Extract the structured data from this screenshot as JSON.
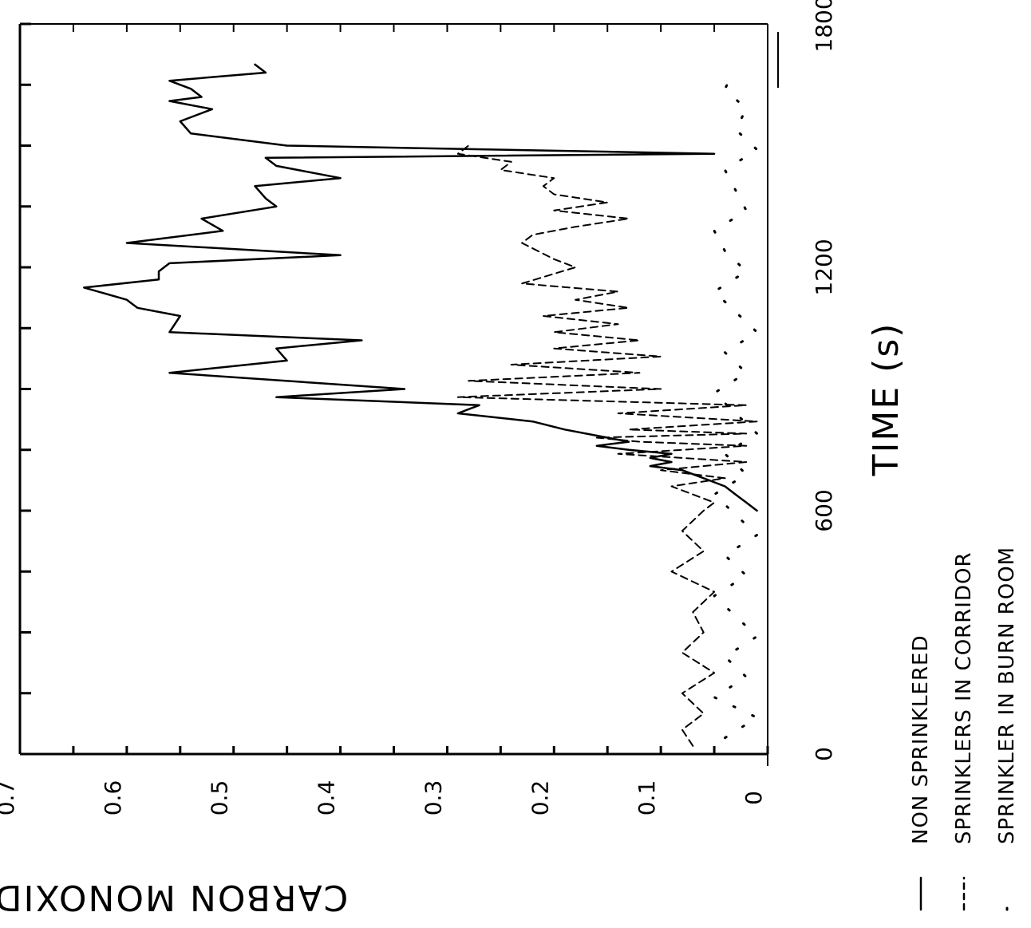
{
  "chart_data": {
    "type": "line",
    "title": "",
    "xlabel": "TIME (s)",
    "ylabel": "CARBON MONOXIDE (%)",
    "xlim": [
      0,
      1800
    ],
    "ylim": [
      0,
      0.7
    ],
    "x_ticks": [
      0,
      600,
      1200,
      1800
    ],
    "x_tick_labels": [
      "0",
      "600",
      "1200",
      "1800"
    ],
    "y_ticks": [
      0,
      0.1,
      0.2,
      0.3,
      0.4,
      0.5,
      0.6,
      0.7
    ],
    "y_tick_labels": [
      "0",
      "0.1",
      "0.2",
      "0.3",
      "0.4",
      "0.5",
      "0.6",
      "0.7"
    ],
    "grid": false,
    "legend_position": "bottom",
    "series": [
      {
        "name": "NON SPRINKLERED",
        "style": "solid",
        "color": "#000000",
        "x": [
          600,
          620,
          640,
          660,
          680,
          700,
          710,
          720,
          730,
          740,
          750,
          760,
          770,
          780,
          800,
          820,
          840,
          860,
          880,
          900,
          940,
          970,
          1000,
          1020,
          1040,
          1080,
          1100,
          1120,
          1150,
          1170,
          1190,
          1210,
          1230,
          1260,
          1290,
          1320,
          1350,
          1370,
          1400,
          1420,
          1450,
          1470,
          1480,
          1500,
          1530,
          1560,
          1590,
          1610,
          1620,
          1640,
          1660,
          1680,
          1700
        ],
        "y": [
          0.01,
          0.02,
          0.03,
          0.04,
          0.06,
          0.08,
          0.11,
          0.09,
          0.11,
          0.09,
          0.13,
          0.16,
          0.13,
          0.15,
          0.19,
          0.22,
          0.29,
          0.27,
          0.46,
          0.34,
          0.56,
          0.45,
          0.46,
          0.38,
          0.56,
          0.55,
          0.59,
          0.6,
          0.64,
          0.57,
          0.57,
          0.56,
          0.4,
          0.6,
          0.51,
          0.53,
          0.46,
          0.47,
          0.48,
          0.4,
          0.46,
          0.47,
          0.05,
          0.45,
          0.54,
          0.55,
          0.52,
          0.56,
          0.53,
          0.54,
          0.56,
          0.47,
          0.48
        ]
      },
      {
        "name": "SPRINKLERS IN CORRIDOR",
        "style": "dashed",
        "color": "#000000",
        "x": [
          20,
          60,
          100,
          150,
          200,
          250,
          300,
          350,
          400,
          450,
          500,
          550,
          600,
          620,
          660,
          680,
          700,
          720,
          740,
          760,
          770,
          780,
          790,
          800,
          820,
          840,
          860,
          880,
          900,
          920,
          940,
          960,
          980,
          1000,
          1020,
          1040,
          1060,
          1080,
          1100,
          1120,
          1140,
          1160,
          1200,
          1220,
          1260,
          1280,
          1300,
          1320,
          1340,
          1360,
          1380,
          1400,
          1420,
          1440,
          1460,
          1480,
          1500
        ],
        "y": [
          0.07,
          0.08,
          0.06,
          0.08,
          0.05,
          0.08,
          0.06,
          0.07,
          0.05,
          0.09,
          0.06,
          0.08,
          0.06,
          0.05,
          0.09,
          0.04,
          0.1,
          0.02,
          0.14,
          0.02,
          0.12,
          0.16,
          0.02,
          0.13,
          0.01,
          0.14,
          0.02,
          0.29,
          0.1,
          0.28,
          0.12,
          0.24,
          0.1,
          0.2,
          0.12,
          0.2,
          0.14,
          0.21,
          0.13,
          0.18,
          0.14,
          0.23,
          0.18,
          0.2,
          0.23,
          0.22,
          0.18,
          0.13,
          0.2,
          0.15,
          0.2,
          0.21,
          0.2,
          0.25,
          0.24,
          0.29,
          0.28
        ]
      },
      {
        "name": "SPRINKLER IN BURN ROOM",
        "style": "dotted",
        "color": "#000000",
        "x": [
          40,
          90,
          140,
          190,
          240,
          290,
          340,
          390,
          440,
          490,
          540,
          590,
          640,
          690,
          740,
          790,
          840,
          890,
          940,
          990,
          1040,
          1090,
          1140,
          1190,
          1240,
          1290,
          1340,
          1390,
          1440,
          1490,
          1540,
          1590,
          1640,
          1690
        ],
        "y": [
          0.04,
          0.01,
          0.05,
          0.02,
          0.04,
          0.01,
          0.03,
          0.05,
          0.02,
          0.04,
          0.01,
          0.03,
          0.05,
          0.02,
          0.04,
          0.01,
          0.03,
          0.05,
          0.02,
          0.04,
          0.01,
          0.03,
          0.05,
          0.02,
          0.04,
          0.05,
          0.02,
          0.03,
          0.04,
          0.01,
          0.03,
          0.02,
          0.04,
          0.03
        ]
      }
    ]
  }
}
